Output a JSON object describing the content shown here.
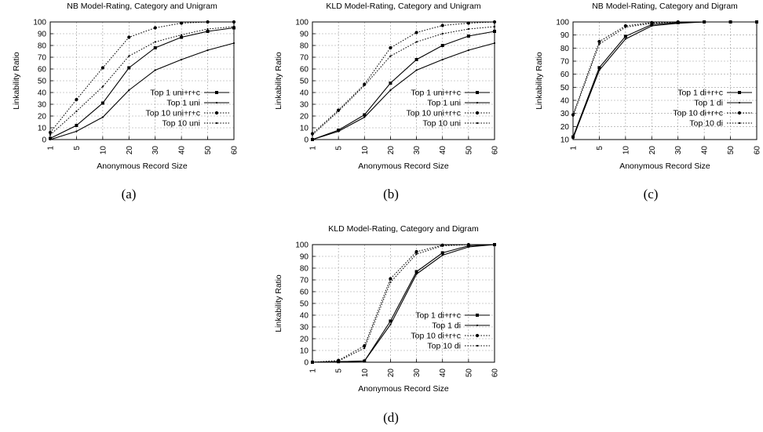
{
  "chart_data": [
    {
      "type": "line",
      "title": "NB Model-Rating, Category and Unigram",
      "xlabel": "Anonymous Record Size",
      "ylabel": "Linkability Ratio",
      "caption": "(a)",
      "categories": [
        "1",
        "5",
        "10",
        "20",
        "30",
        "40",
        "50",
        "60"
      ],
      "ylim": [
        0,
        100
      ],
      "yticks": [
        0,
        10,
        20,
        30,
        40,
        50,
        60,
        70,
        80,
        90,
        100
      ],
      "grid": true,
      "legend_position": "bottom-right",
      "series": [
        {
          "name": "Top 1 uni+r+c",
          "style": "solid-square",
          "values": [
            1,
            12,
            31,
            61,
            78,
            87,
            92,
            95
          ]
        },
        {
          "name": "Top 1 uni",
          "style": "solid-plain",
          "values": [
            0,
            7,
            19,
            42,
            59,
            68,
            76,
            82
          ]
        },
        {
          "name": "Top 10 uni+r+c",
          "style": "dotted-circle",
          "values": [
            6,
            34,
            61,
            87,
            95,
            99,
            100,
            100
          ]
        },
        {
          "name": "Top 10 uni",
          "style": "dotted-plain",
          "values": [
            4,
            24,
            45,
            71,
            83,
            89,
            94,
            96
          ]
        }
      ]
    },
    {
      "type": "line",
      "title": "KLD Model-Rating, Category and Unigram",
      "xlabel": "Anonymous Record Size",
      "ylabel": "Linkability Ratio",
      "caption": "(b)",
      "categories": [
        "1",
        "5",
        "10",
        "20",
        "30",
        "40",
        "50",
        "60"
      ],
      "ylim": [
        0,
        100
      ],
      "yticks": [
        0,
        10,
        20,
        30,
        40,
        50,
        60,
        70,
        80,
        90,
        100
      ],
      "grid": true,
      "legend_position": "bottom-right",
      "series": [
        {
          "name": "Top 1 uni+r+c",
          "style": "solid-square",
          "values": [
            0,
            8,
            21,
            48,
            68,
            80,
            88,
            92
          ]
        },
        {
          "name": "Top 1 uni",
          "style": "solid-plain",
          "values": [
            0,
            7,
            19,
            42,
            59,
            68,
            76,
            82
          ]
        },
        {
          "name": "Top 10 uni+r+c",
          "style": "dotted-circle",
          "values": [
            5,
            25,
            47,
            78,
            91,
            97,
            99,
            100
          ]
        },
        {
          "name": "Top 10 uni",
          "style": "dotted-plain",
          "values": [
            4,
            24,
            46,
            71,
            83,
            90,
            94,
            96
          ]
        }
      ]
    },
    {
      "type": "line",
      "title": "NB Model-Rating, Category and Digram",
      "xlabel": "Anonymous Record Size",
      "ylabel": "Linkability Ratio",
      "caption": "(c)",
      "categories": [
        "1",
        "5",
        "10",
        "20",
        "30",
        "40",
        "50",
        "60"
      ],
      "ylim": [
        10,
        100
      ],
      "yticks": [
        10,
        20,
        30,
        40,
        50,
        60,
        70,
        80,
        90,
        100
      ],
      "grid": true,
      "legend_position": "bottom-right",
      "series": [
        {
          "name": "Top 1 di+r+c",
          "style": "solid-square",
          "values": [
            12,
            65,
            89,
            98,
            99.5,
            100,
            100,
            100
          ]
        },
        {
          "name": "Top 1 di",
          "style": "solid-plain",
          "values": [
            11,
            63,
            87,
            97,
            99,
            100,
            100,
            100
          ]
        },
        {
          "name": "Top 10 di+r+c",
          "style": "dotted-circle",
          "values": [
            29,
            85,
            97,
            99.5,
            100,
            100,
            100,
            100
          ]
        },
        {
          "name": "Top 10 di",
          "style": "dotted-plain",
          "values": [
            28,
            83,
            96,
            99,
            100,
            100,
            100,
            100
          ]
        }
      ]
    },
    {
      "type": "line",
      "title": "KLD Model-Rating, Category and Digram",
      "xlabel": "Anonymous Record Size",
      "ylabel": "Linkability Ratio",
      "caption": "(d)",
      "categories": [
        "1",
        "5",
        "10",
        "20",
        "30",
        "40",
        "50",
        "60"
      ],
      "ylim": [
        0,
        100
      ],
      "yticks": [
        0,
        10,
        20,
        30,
        40,
        50,
        60,
        70,
        80,
        90,
        100
      ],
      "grid": true,
      "legend_position": "bottom-right",
      "series": [
        {
          "name": "Top 1 di+r+c",
          "style": "solid-square",
          "values": [
            0,
            0.5,
            1,
            35,
            77,
            93,
            99,
            100
          ]
        },
        {
          "name": "Top 1 di",
          "style": "solid-plain",
          "values": [
            0,
            0.5,
            1,
            32,
            75,
            91,
            98,
            100
          ]
        },
        {
          "name": "Top 10 di+r+c",
          "style": "dotted-circle",
          "values": [
            0,
            1.5,
            14,
            71,
            94,
            99.5,
            100,
            100
          ]
        },
        {
          "name": "Top 10 di",
          "style": "dotted-plain",
          "values": [
            0,
            1,
            12,
            68,
            92,
            99,
            100,
            100
          ]
        }
      ]
    }
  ]
}
